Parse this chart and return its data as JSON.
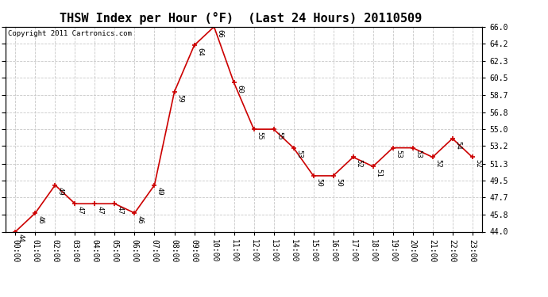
{
  "title": "THSW Index per Hour (°F)  (Last 24 Hours) 20110509",
  "copyright": "Copyright 2011 Cartronics.com",
  "x_labels": [
    "00:00",
    "01:00",
    "02:00",
    "03:00",
    "04:00",
    "05:00",
    "06:00",
    "07:00",
    "08:00",
    "09:00",
    "10:00",
    "11:00",
    "12:00",
    "13:00",
    "14:00",
    "15:00",
    "16:00",
    "17:00",
    "18:00",
    "19:00",
    "20:00",
    "21:00",
    "22:00",
    "23:00"
  ],
  "y_values": [
    44,
    46,
    49,
    47,
    47,
    47,
    46,
    49,
    59,
    64,
    66,
    60,
    55,
    55,
    53,
    50,
    50,
    52,
    51,
    53,
    53,
    52,
    54,
    52
  ],
  "y_labels": [
    44.0,
    45.8,
    47.7,
    49.5,
    51.3,
    53.2,
    55.0,
    56.8,
    58.7,
    60.5,
    62.3,
    64.2,
    66.0
  ],
  "ylim": [
    44.0,
    66.0
  ],
  "line_color": "#cc0000",
  "marker_color": "#cc0000",
  "bg_color": "#ffffff",
  "grid_color": "#c8c8c8",
  "title_fontsize": 11,
  "annotation_fontsize": 6.5,
  "copyright_fontsize": 6.5,
  "tick_fontsize": 7
}
